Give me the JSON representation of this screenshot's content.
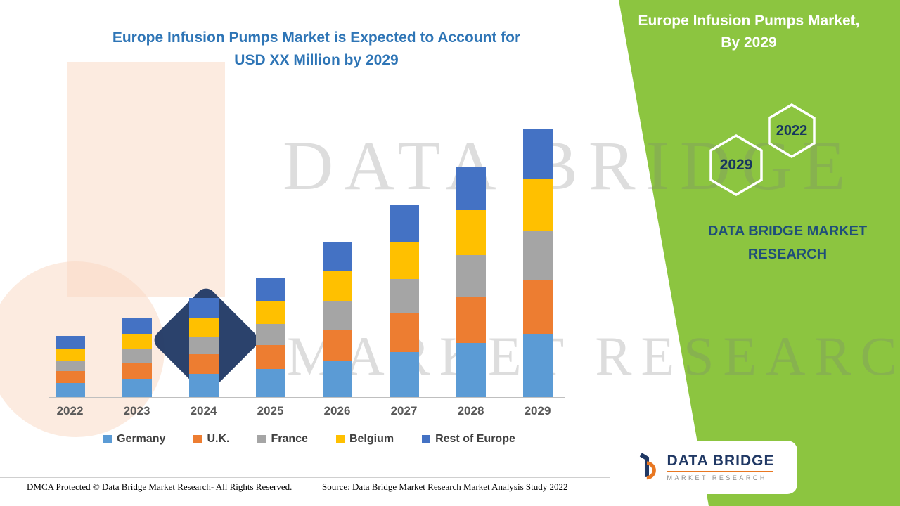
{
  "header": {
    "main_title_line1": "Europe Infusion Pumps Market is Expected to Account for",
    "main_title_line2": "USD XX Million by 2029"
  },
  "side_panel": {
    "title_line1": "Europe Infusion Pumps Market,",
    "title_line2": "By 2029",
    "hexagons": [
      {
        "label": "2029"
      },
      {
        "label": "2022"
      }
    ],
    "brand_line1": "DATA BRIDGE MARKET",
    "brand_line2": "RESEARCH"
  },
  "watermark": {
    "line1": "DATA BRIDGE",
    "line2": "MARKET RESEARCH"
  },
  "colors": {
    "panel_green": "#8cc540",
    "title_blue": "#2E75B6",
    "brand_navy": "#1F4E79",
    "logo_navy": "#203864",
    "logo_orange": "#E87722"
  },
  "chart_data": {
    "type": "bar",
    "stacked": true,
    "title": "Europe Infusion Pumps Market is Expected to Account for USD XX Million by 2029",
    "categories": [
      "2022",
      "2023",
      "2024",
      "2025",
      "2026",
      "2027",
      "2028",
      "2029"
    ],
    "series": [
      {
        "name": "Germany",
        "color": "#5B9BD5",
        "values": [
          20,
          26,
          33,
          40,
          52,
          64,
          77,
          90
        ]
      },
      {
        "name": "U.K.",
        "color": "#ED7D31",
        "values": [
          17,
          22,
          28,
          34,
          44,
          55,
          66,
          77
        ]
      },
      {
        "name": "France",
        "color": "#A5A5A5",
        "values": [
          15,
          20,
          25,
          30,
          40,
          49,
          59,
          69
        ]
      },
      {
        "name": "Belgium",
        "color": "#FFC000",
        "values": [
          17,
          22,
          27,
          33,
          43,
          53,
          64,
          74
        ]
      },
      {
        "name": "Rest of Europe",
        "color": "#4472C4",
        "values": [
          18,
          23,
          28,
          32,
          41,
          52,
          62,
          72
        ]
      }
    ],
    "xlabel": "",
    "ylabel": "",
    "y_axis_visible": false,
    "ylim": [
      0,
      400
    ],
    "grid": false,
    "legend_position": "bottom"
  },
  "footer": {
    "left": "DMCA Protected © Data Bridge Market Research- All Rights Reserved.",
    "source": "Source: Data Bridge Market Research Market Analysis Study 2022"
  },
  "logo_box": {
    "name": "DATA BRIDGE",
    "subtitle": "MARKET RESEARCH"
  }
}
